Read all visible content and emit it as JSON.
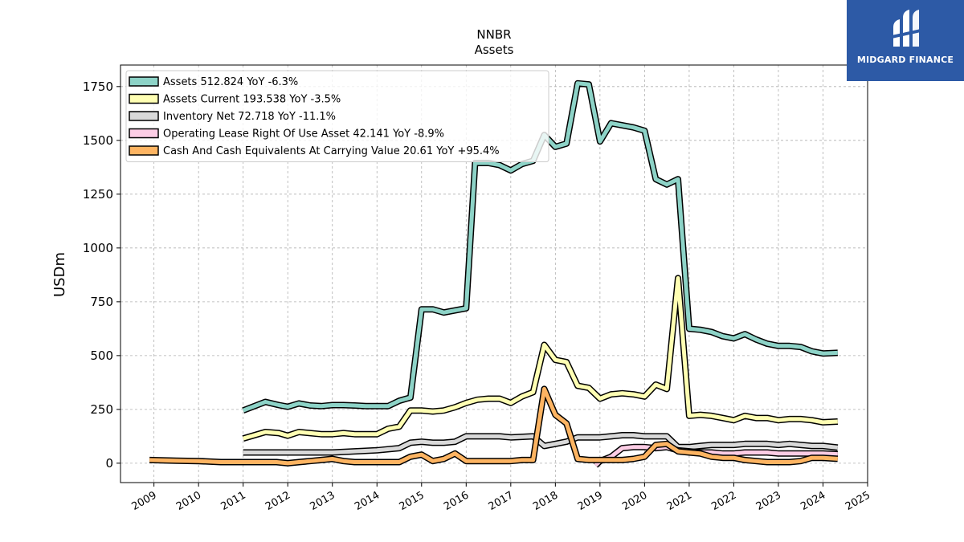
{
  "brand": {
    "name": "MIDGARD FINANCE",
    "color": "#2d5aa6"
  },
  "chart_data": {
    "type": "line",
    "title": "NNBR",
    "subtitle": "Assets",
    "ylabel": "USDm",
    "xlabel": "",
    "ylim": [
      -90,
      1850
    ],
    "xlim": [
      2008.25,
      2025.0
    ],
    "yticks": [
      0,
      250,
      500,
      750,
      1000,
      1250,
      1500,
      1750
    ],
    "xticks": [
      2009,
      2010,
      2011,
      2012,
      2013,
      2014,
      2015,
      2016,
      2017,
      2018,
      2019,
      2020,
      2021,
      2022,
      2023,
      2024,
      2025
    ],
    "grid": true,
    "legend_position": "upper-left",
    "series": [
      {
        "name": "Assets",
        "legend": "Assets  512.824 YoY -6.3%",
        "color": "#8dd3c7",
        "points": [
          [
            2011.0,
            245
          ],
          [
            2011.5,
            285
          ],
          [
            2011.8,
            270
          ],
          [
            2012.0,
            262
          ],
          [
            2012.25,
            278
          ],
          [
            2012.5,
            268
          ],
          [
            2012.75,
            265
          ],
          [
            2013.0,
            270
          ],
          [
            2013.25,
            270
          ],
          [
            2013.5,
            268
          ],
          [
            2013.75,
            265
          ],
          [
            2014.0,
            265
          ],
          [
            2014.25,
            265
          ],
          [
            2014.5,
            290
          ],
          [
            2014.75,
            305
          ],
          [
            2015.0,
            715
          ],
          [
            2015.25,
            715
          ],
          [
            2015.5,
            700
          ],
          [
            2015.75,
            710
          ],
          [
            2016.0,
            720
          ],
          [
            2016.2,
            1395
          ],
          [
            2016.5,
            1395
          ],
          [
            2016.75,
            1385
          ],
          [
            2017.0,
            1360
          ],
          [
            2017.25,
            1390
          ],
          [
            2017.5,
            1405
          ],
          [
            2017.75,
            1525
          ],
          [
            2018.0,
            1470
          ],
          [
            2018.25,
            1485
          ],
          [
            2018.5,
            1765
          ],
          [
            2018.75,
            1760
          ],
          [
            2019.0,
            1495
          ],
          [
            2019.25,
            1580
          ],
          [
            2019.5,
            1570
          ],
          [
            2019.75,
            1560
          ],
          [
            2020.0,
            1545
          ],
          [
            2020.25,
            1320
          ],
          [
            2020.5,
            1295
          ],
          [
            2020.75,
            1320
          ],
          [
            2021.0,
            625
          ],
          [
            2021.25,
            620
          ],
          [
            2021.5,
            610
          ],
          [
            2021.75,
            590
          ],
          [
            2022.0,
            580
          ],
          [
            2022.25,
            600
          ],
          [
            2022.5,
            575
          ],
          [
            2022.75,
            555
          ],
          [
            2023.0,
            545
          ],
          [
            2023.25,
            545
          ],
          [
            2023.5,
            540
          ],
          [
            2023.75,
            520
          ],
          [
            2024.0,
            510
          ],
          [
            2024.33,
            512.824
          ]
        ]
      },
      {
        "name": "Assets Current",
        "legend": "Assets Current  193.538 YoY -3.5%",
        "color": "#ffffb3",
        "points": [
          [
            2011.0,
            115
          ],
          [
            2011.5,
            145
          ],
          [
            2011.8,
            140
          ],
          [
            2012.0,
            128
          ],
          [
            2012.25,
            145
          ],
          [
            2012.5,
            140
          ],
          [
            2012.75,
            135
          ],
          [
            2013.0,
            135
          ],
          [
            2013.25,
            140
          ],
          [
            2013.5,
            135
          ],
          [
            2013.75,
            135
          ],
          [
            2014.0,
            135
          ],
          [
            2014.25,
            160
          ],
          [
            2014.5,
            170
          ],
          [
            2014.75,
            245
          ],
          [
            2015.0,
            245
          ],
          [
            2015.25,
            240
          ],
          [
            2015.5,
            245
          ],
          [
            2015.75,
            260
          ],
          [
            2016.0,
            280
          ],
          [
            2016.25,
            295
          ],
          [
            2016.5,
            300
          ],
          [
            2016.75,
            300
          ],
          [
            2017.0,
            280
          ],
          [
            2017.25,
            310
          ],
          [
            2017.5,
            330
          ],
          [
            2017.75,
            550
          ],
          [
            2018.0,
            480
          ],
          [
            2018.25,
            470
          ],
          [
            2018.5,
            360
          ],
          [
            2018.75,
            350
          ],
          [
            2019.0,
            300
          ],
          [
            2019.25,
            320
          ],
          [
            2019.5,
            325
          ],
          [
            2019.75,
            320
          ],
          [
            2020.0,
            310
          ],
          [
            2020.25,
            365
          ],
          [
            2020.5,
            345
          ],
          [
            2020.75,
            860
          ],
          [
            2021.0,
            220
          ],
          [
            2021.25,
            225
          ],
          [
            2021.5,
            220
          ],
          [
            2021.75,
            210
          ],
          [
            2022.0,
            200
          ],
          [
            2022.25,
            220
          ],
          [
            2022.5,
            210
          ],
          [
            2022.75,
            210
          ],
          [
            2023.0,
            200
          ],
          [
            2023.25,
            205
          ],
          [
            2023.5,
            205
          ],
          [
            2023.75,
            200
          ],
          [
            2024.0,
            190
          ],
          [
            2024.33,
            193.538
          ]
        ]
      },
      {
        "name": "Inventory Net",
        "legend": "Inventory Net  72.718 YoY -11.1%",
        "color": "#d9d9d9",
        "points": [
          [
            2011.0,
            50
          ],
          [
            2011.5,
            50
          ],
          [
            2011.8,
            50
          ],
          [
            2012.0,
            50
          ],
          [
            2012.5,
            50
          ],
          [
            2013.0,
            50
          ],
          [
            2013.5,
            55
          ],
          [
            2014.0,
            60
          ],
          [
            2014.5,
            70
          ],
          [
            2014.75,
            95
          ],
          [
            2015.0,
            100
          ],
          [
            2015.25,
            95
          ],
          [
            2015.5,
            95
          ],
          [
            2015.75,
            100
          ],
          [
            2016.0,
            125
          ],
          [
            2016.5,
            125
          ],
          [
            2016.75,
            125
          ],
          [
            2017.0,
            120
          ],
          [
            2017.5,
            125
          ],
          [
            2017.75,
            80
          ],
          [
            2018.0,
            90
          ],
          [
            2018.25,
            100
          ],
          [
            2018.5,
            120
          ],
          [
            2018.75,
            120
          ],
          [
            2019.0,
            120
          ],
          [
            2019.25,
            125
          ],
          [
            2019.5,
            130
          ],
          [
            2019.75,
            130
          ],
          [
            2020.0,
            125
          ],
          [
            2020.25,
            125
          ],
          [
            2020.5,
            125
          ],
          [
            2020.75,
            75
          ],
          [
            2021.0,
            75
          ],
          [
            2021.25,
            80
          ],
          [
            2021.5,
            85
          ],
          [
            2021.75,
            85
          ],
          [
            2022.0,
            85
          ],
          [
            2022.25,
            90
          ],
          [
            2022.5,
            90
          ],
          [
            2022.75,
            90
          ],
          [
            2023.0,
            85
          ],
          [
            2023.25,
            90
          ],
          [
            2023.5,
            85
          ],
          [
            2023.75,
            80
          ],
          [
            2024.0,
            80
          ],
          [
            2024.33,
            72.718
          ]
        ]
      },
      {
        "name": "Operating Lease Right Of Use Asset",
        "legend": "Operating Lease Right Of Use Asset  42.141 YoY -8.9%",
        "color": "#fccde5",
        "points": [
          [
            2018.9,
            -10
          ],
          [
            2019.0,
            10
          ],
          [
            2019.25,
            30
          ],
          [
            2019.5,
            70
          ],
          [
            2019.75,
            75
          ],
          [
            2020.0,
            75
          ],
          [
            2020.25,
            70
          ],
          [
            2020.5,
            75
          ],
          [
            2020.75,
            60
          ],
          [
            2021.0,
            55
          ],
          [
            2021.25,
            50
          ],
          [
            2021.5,
            50
          ],
          [
            2021.75,
            45
          ],
          [
            2022.0,
            45
          ],
          [
            2022.25,
            50
          ],
          [
            2022.5,
            50
          ],
          [
            2022.75,
            50
          ],
          [
            2023.0,
            45
          ],
          [
            2023.25,
            45
          ],
          [
            2023.5,
            45
          ],
          [
            2023.75,
            45
          ],
          [
            2024.0,
            45
          ],
          [
            2024.33,
            42.141
          ]
        ]
      },
      {
        "name": "Cash And Cash Equivalents At Carrying Value",
        "legend": "Cash And Cash Equivalents At Carrying Value  20.61 YoY +95.4%",
        "color": "#fdb462",
        "points": [
          [
            2008.9,
            15
          ],
          [
            2009.5,
            12
          ],
          [
            2010.0,
            10
          ],
          [
            2010.5,
            5
          ],
          [
            2011.0,
            5
          ],
          [
            2011.5,
            5
          ],
          [
            2011.75,
            5
          ],
          [
            2012.0,
            0
          ],
          [
            2012.25,
            5
          ],
          [
            2012.5,
            10
          ],
          [
            2012.75,
            15
          ],
          [
            2013.0,
            20
          ],
          [
            2013.25,
            10
          ],
          [
            2013.5,
            5
          ],
          [
            2013.75,
            5
          ],
          [
            2014.0,
            5
          ],
          [
            2014.25,
            5
          ],
          [
            2014.5,
            5
          ],
          [
            2014.75,
            30
          ],
          [
            2015.0,
            40
          ],
          [
            2015.25,
            10
          ],
          [
            2015.5,
            20
          ],
          [
            2015.75,
            45
          ],
          [
            2016.0,
            10
          ],
          [
            2016.5,
            10
          ],
          [
            2017.0,
            10
          ],
          [
            2017.25,
            15
          ],
          [
            2017.5,
            15
          ],
          [
            2017.75,
            345
          ],
          [
            2018.0,
            225
          ],
          [
            2018.25,
            185
          ],
          [
            2018.5,
            20
          ],
          [
            2018.75,
            15
          ],
          [
            2019.0,
            15
          ],
          [
            2019.25,
            15
          ],
          [
            2019.5,
            15
          ],
          [
            2019.75,
            20
          ],
          [
            2020.0,
            30
          ],
          [
            2020.25,
            85
          ],
          [
            2020.5,
            90
          ],
          [
            2020.75,
            55
          ],
          [
            2021.0,
            50
          ],
          [
            2021.25,
            45
          ],
          [
            2021.5,
            30
          ],
          [
            2021.75,
            25
          ],
          [
            2022.0,
            25
          ],
          [
            2022.25,
            15
          ],
          [
            2022.5,
            10
          ],
          [
            2022.75,
            5
          ],
          [
            2023.0,
            5
          ],
          [
            2023.25,
            5
          ],
          [
            2023.5,
            10
          ],
          [
            2023.75,
            25
          ],
          [
            2024.0,
            25
          ],
          [
            2024.33,
            20.61
          ]
        ]
      }
    ]
  }
}
